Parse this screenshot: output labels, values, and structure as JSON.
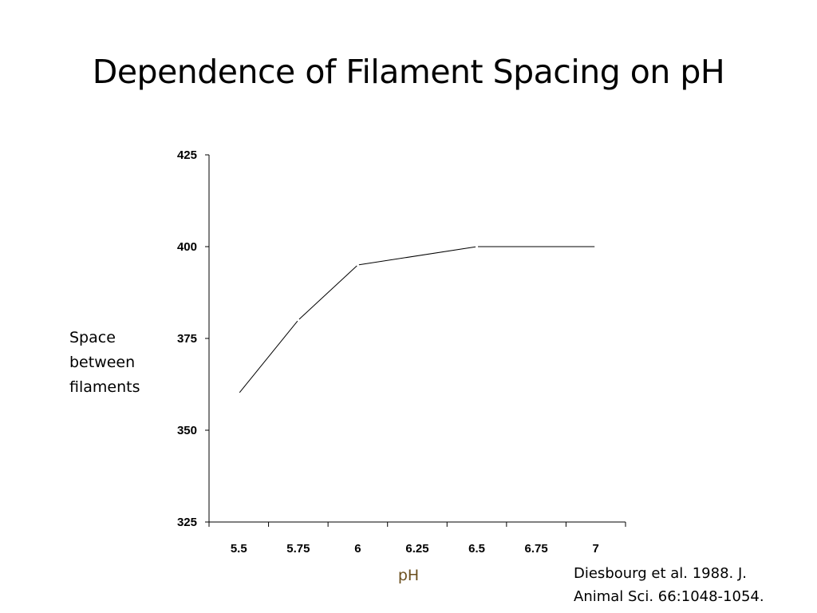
{
  "slide": {
    "title": "Dependence of Filament Spacing on pH",
    "citation_lines": [
      "Diesbourg et al. 1988. J.",
      "Animal Sci. 66:1048-1054."
    ]
  },
  "chart_data": {
    "type": "line",
    "title": "",
    "xlabel": "pH",
    "ylabel_lines": [
      "Space",
      "between",
      "filaments"
    ],
    "categories": [
      "5.5",
      "5.75",
      "6",
      "6.25",
      "6.5",
      "6.75",
      "7"
    ],
    "series": [
      {
        "points": [
          {
            "x": 5.5,
            "y": 360
          },
          {
            "x": 5.75,
            "y": 380
          },
          {
            "x": 6,
            "y": 395
          },
          {
            "x": 6.5,
            "y": 400
          },
          {
            "x": 7,
            "y": 400
          }
        ]
      }
    ],
    "yticks": [
      "425",
      "400",
      "375",
      "350",
      "325"
    ],
    "ylim": [
      325,
      425
    ],
    "grid": false,
    "legend": "none",
    "colors": {
      "line": "#000000",
      "xlabel": "#6b4f1d",
      "axis": "#000000"
    }
  }
}
